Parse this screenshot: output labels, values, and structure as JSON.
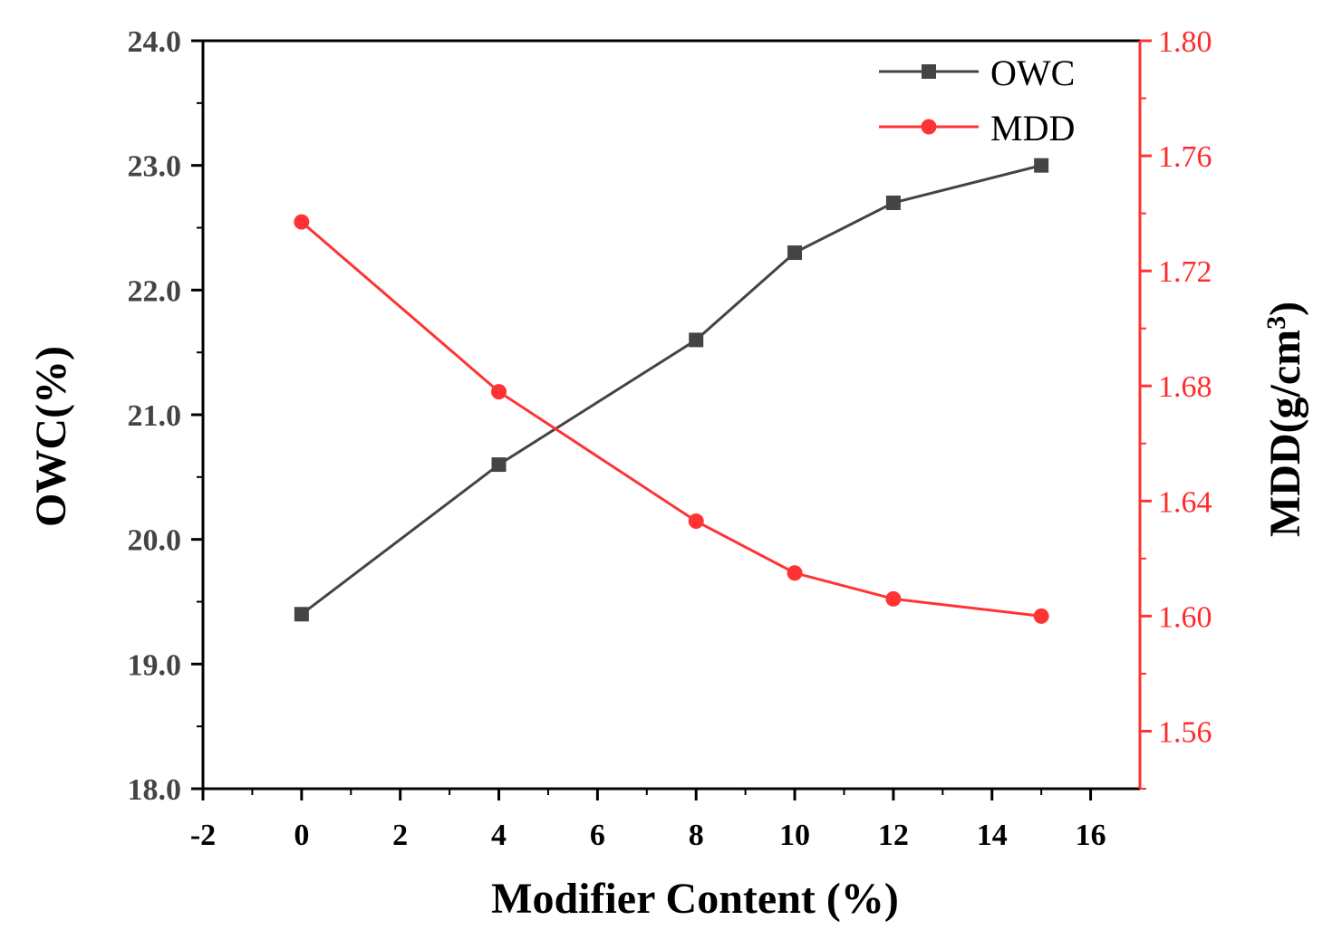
{
  "chart_data": {
    "type": "line",
    "xlabel": "Modifier Content (%)",
    "ylabel_left": "OWC(%)",
    "ylabel_right_prefix": "MDD(g/cm",
    "ylabel_right_sup": "3",
    "ylabel_right_suffix": ")",
    "xlim": [
      -2,
      17
    ],
    "ylim_left": [
      18.0,
      24.0
    ],
    "ylim_right": [
      1.54,
      1.8
    ],
    "x_ticks": [
      -2,
      0,
      2,
      4,
      6,
      8,
      10,
      12,
      14,
      16
    ],
    "x_tick_labels": [
      "-2",
      "0",
      "2",
      "4",
      "6",
      "8",
      "10",
      "12",
      "14",
      "16"
    ],
    "left_ticks": [
      18.0,
      19.0,
      20.0,
      21.0,
      22.0,
      23.0,
      24.0
    ],
    "left_tick_labels": [
      "18.0",
      "19.0",
      "20.0",
      "21.0",
      "22.0",
      "23.0",
      "24.0"
    ],
    "right_ticks": [
      1.56,
      1.6,
      1.64,
      1.68,
      1.72,
      1.76,
      1.8
    ],
    "right_tick_labels": [
      "1.56",
      "1.60",
      "1.64",
      "1.68",
      "1.72",
      "1.76",
      "1.80"
    ],
    "series": [
      {
        "name": "OWC",
        "axis": "left",
        "color": "#444444",
        "marker": "square",
        "x": [
          0,
          4,
          8,
          10,
          12,
          15
        ],
        "values": [
          19.4,
          20.6,
          21.6,
          22.3,
          22.7,
          23.0
        ]
      },
      {
        "name": "MDD",
        "axis": "right",
        "color": "#ff3333",
        "marker": "circle",
        "x": [
          0,
          4,
          8,
          10,
          12,
          15
        ],
        "values": [
          1.737,
          1.678,
          1.633,
          1.615,
          1.606,
          1.6
        ]
      }
    ],
    "legend_position": "top-right",
    "left_axis_color": "#000000",
    "right_axis_color": "#ff3333"
  }
}
